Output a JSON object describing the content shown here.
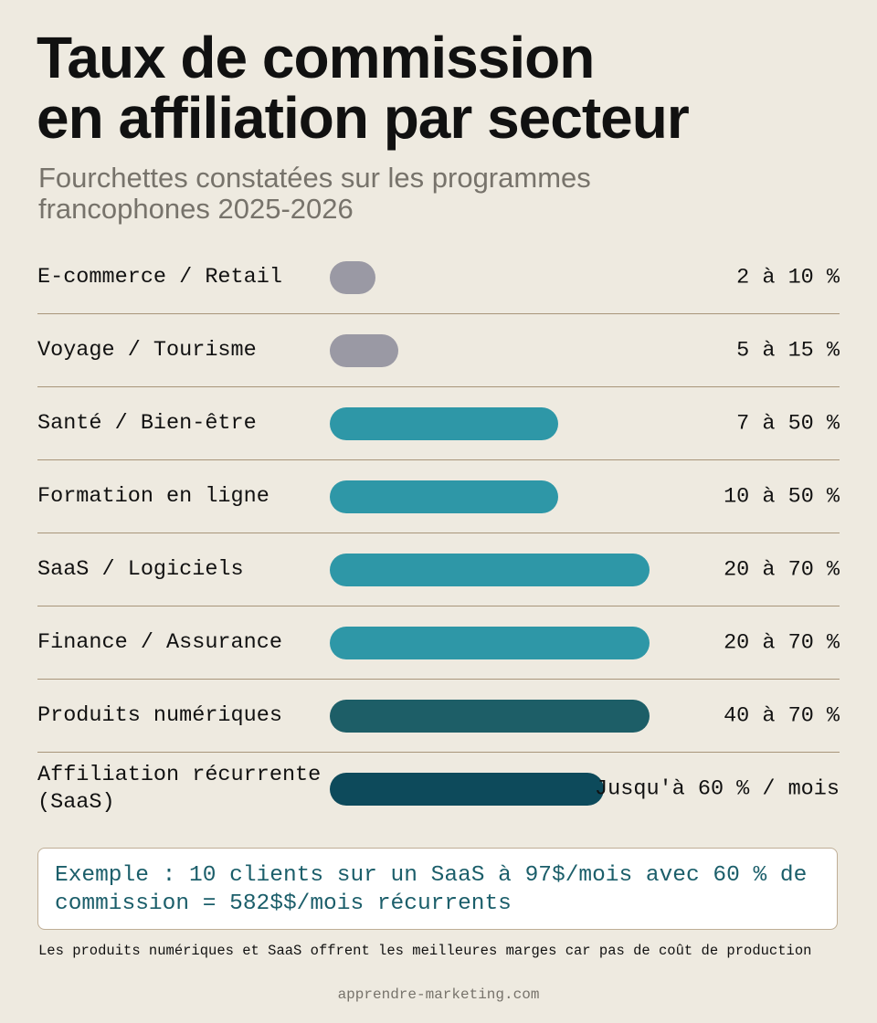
{
  "title_line1": "Taux de commission",
  "title_line2": "en affiliation par secteur",
  "subtitle": "Fourchettes constatées sur les programmes francophones 2025-2026",
  "chart_data": {
    "type": "bar",
    "orientation": "horizontal",
    "title": "Taux de commission en affiliation par secteur",
    "categories": [
      "E-commerce / Retail",
      "Voyage / Tourisme",
      "Santé / Bien-être",
      "Formation en ligne",
      "SaaS / Logiciels",
      "Finance / Assurance",
      "Produits numériques",
      "Affiliation récurrente (SaaS)"
    ],
    "rows": [
      {
        "label": "E-commerce / Retail",
        "min": 2,
        "max": 10,
        "value_label": "2 à 10 %",
        "color": "#9a99a4"
      },
      {
        "label": "Voyage / Tourisme",
        "min": 5,
        "max": 15,
        "value_label": "5 à 15 %",
        "color": "#9a99a4"
      },
      {
        "label": "Santé / Bien-être",
        "min": 7,
        "max": 50,
        "value_label": "7 à 50 %",
        "color": "#2e97a7"
      },
      {
        "label": "Formation en ligne",
        "min": 10,
        "max": 50,
        "value_label": "10 à 50 %",
        "color": "#2e97a7"
      },
      {
        "label": "SaaS / Logiciels",
        "min": 20,
        "max": 70,
        "value_label": "20 à 70 %",
        "color": "#2e97a7"
      },
      {
        "label": "Finance / Assurance",
        "min": 20,
        "max": 70,
        "value_label": "20 à 70 %",
        "color": "#2e97a7"
      },
      {
        "label": "Produits numériques",
        "min": 40,
        "max": 70,
        "value_label": "40 à 70 %",
        "color": "#1d5e67"
      },
      {
        "label": "Affiliation récurrente (SaaS)",
        "min": null,
        "max": 60,
        "value_label": "Jusqu'à 60 % / mois",
        "color": "#0d4a5b"
      }
    ],
    "unit": "%",
    "grid": false
  },
  "example": "Exemple : 10 clients sur un SaaS à 97$/mois avec 60 % de commission  = 582$$/mois récurrents",
  "note": "Les produits numériques et SaaS offrent les meilleures marges car pas de coût de production",
  "source": "apprendre-marketing.com"
}
